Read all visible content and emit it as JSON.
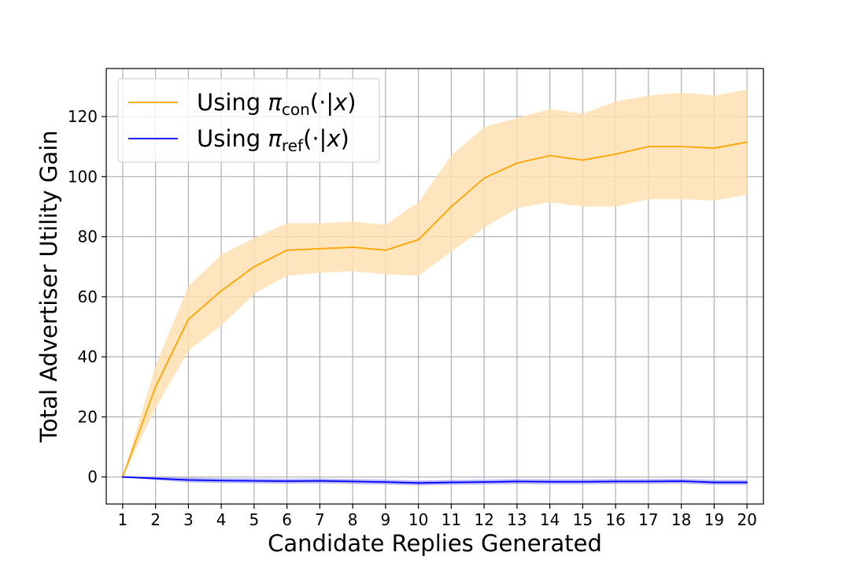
{
  "chart_data": {
    "type": "line",
    "title": "",
    "xlabel": "Candidate Replies Generated",
    "ylabel": "Total Advertiser Utility Gain",
    "x": [
      1,
      2,
      3,
      4,
      5,
      6,
      7,
      8,
      9,
      10,
      11,
      12,
      13,
      14,
      15,
      16,
      17,
      18,
      19,
      20
    ],
    "xlim": [
      0.5,
      20.5
    ],
    "ylim": [
      -9,
      136
    ],
    "x_ticks": [
      1,
      2,
      3,
      4,
      5,
      6,
      7,
      8,
      9,
      10,
      11,
      12,
      13,
      14,
      15,
      16,
      17,
      18,
      19,
      20
    ],
    "y_ticks": [
      0,
      20,
      40,
      60,
      80,
      100,
      120
    ],
    "grid": true,
    "legend_position": "top-left",
    "series": [
      {
        "name": "Using π_con(·|x)",
        "label_main": "Using ",
        "label_symbol": "π",
        "label_sub": "con",
        "label_tail": "(·|",
        "label_var": "x",
        "label_close": ")",
        "color": "#ffa500",
        "band_color": "#ffe0b2",
        "values": [
          0,
          30,
          52.5,
          62,
          70,
          75.5,
          76,
          76.5,
          75.5,
          79,
          90,
          99.5,
          104.5,
          107,
          105.5,
          107.5,
          110,
          110,
          109.5,
          111.5
        ],
        "lower": [
          0,
          23,
          42,
          50.5,
          61,
          67,
          68,
          68.5,
          67.5,
          67,
          75,
          83,
          89.5,
          91.5,
          90,
          90,
          92.5,
          92.5,
          92,
          94
        ],
        "upper": [
          0,
          37,
          63.5,
          74,
          79.5,
          84.5,
          84.5,
          85,
          84,
          91.5,
          107,
          116.5,
          119.5,
          122.5,
          121,
          125,
          127,
          128,
          127,
          129
        ]
      },
      {
        "name": "Using π_ref(·|x)",
        "label_main": "Using ",
        "label_symbol": "π",
        "label_sub": "ref",
        "label_tail": "(·|",
        "label_var": "x",
        "label_close": ")",
        "color": "#0000ff",
        "band_color": "#9a9aff",
        "values": [
          0,
          -0.5,
          -1,
          -1.2,
          -1.3,
          -1.4,
          -1.3,
          -1.5,
          -1.7,
          -2,
          -1.8,
          -1.7,
          -1.5,
          -1.6,
          -1.6,
          -1.5,
          -1.5,
          -1.4,
          -1.8,
          -1.8
        ],
        "lower": [
          0,
          -1,
          -1.8,
          -2,
          -2.1,
          -2.2,
          -2.1,
          -2.3,
          -2.5,
          -2.8,
          -2.6,
          -2.5,
          -2.3,
          -2.4,
          -2.4,
          -2.3,
          -2.3,
          -2.2,
          -2.6,
          -2.6
        ],
        "upper": [
          0,
          0,
          -0.2,
          -0.4,
          -0.5,
          -0.6,
          -0.5,
          -0.7,
          -0.9,
          -1.2,
          -1,
          -0.9,
          -0.7,
          -0.8,
          -0.8,
          -0.7,
          -0.7,
          -0.6,
          -1,
          -1
        ]
      }
    ]
  }
}
